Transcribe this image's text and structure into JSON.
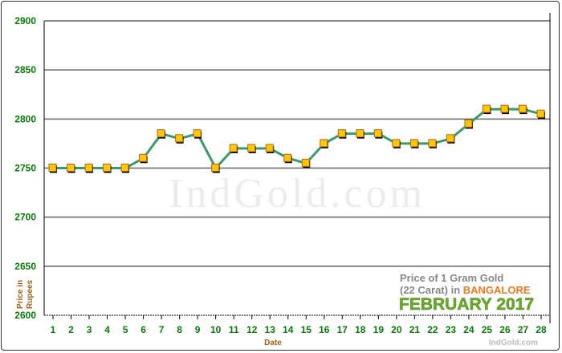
{
  "chart_data": {
    "type": "line",
    "title_line1": "Price of 1 Gram Gold",
    "title_line2_prefix": "(22 Carat) in ",
    "city": "BANGALORE",
    "month_year": "FEBRUARY 2017",
    "watermark": "IndGold.com",
    "credit": "IndGold.com",
    "xlabel": "Date",
    "ylabel_line1": "Price in",
    "ylabel_line2": "Rupees",
    "ylim": [
      2600,
      2900
    ],
    "yticks": [
      2600,
      2650,
      2700,
      2750,
      2800,
      2850,
      2900
    ],
    "grid": true,
    "x": [
      1,
      2,
      3,
      4,
      5,
      6,
      7,
      8,
      9,
      10,
      11,
      12,
      13,
      14,
      15,
      16,
      17,
      18,
      19,
      20,
      21,
      22,
      23,
      24,
      25,
      26,
      27,
      28
    ],
    "values": [
      2750,
      2750,
      2750,
      2750,
      2750,
      2760,
      2785,
      2780,
      2785,
      2750,
      2770,
      2770,
      2770,
      2760,
      2755,
      2775,
      2785,
      2785,
      2785,
      2775,
      2775,
      2775,
      2780,
      2795,
      2810,
      2810,
      2810,
      2805
    ],
    "colors": {
      "line": "#3a9a68",
      "marker": "#ffc800",
      "marker_edge": "#b5651d",
      "ticks": "#0a7a0a",
      "city": "#f07a20",
      "month": "#6aaa2a",
      "title": "#888888"
    }
  }
}
